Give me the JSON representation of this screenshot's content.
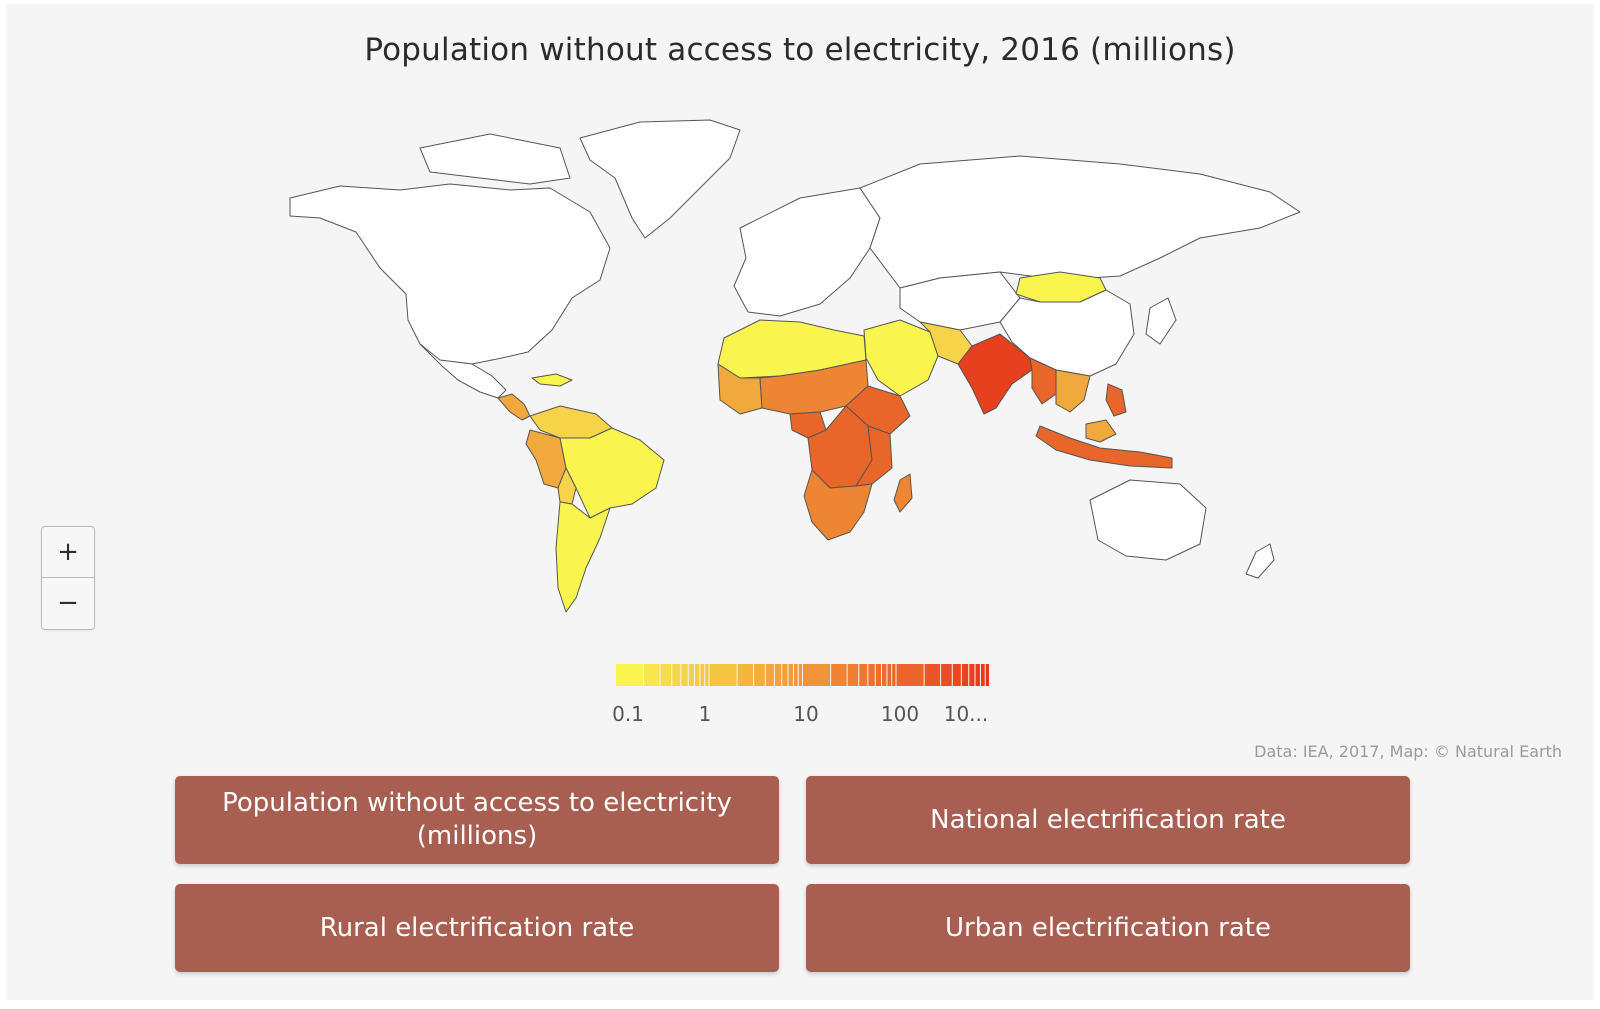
{
  "title": "Population without access to electricity, 2016 (millions)",
  "zoom": {
    "in_label": "+",
    "out_label": "−"
  },
  "legend": {
    "ticks": [
      "0.1",
      "1",
      "10",
      "100",
      "10..."
    ],
    "color_low": "#f9f54e",
    "color_high": "#e8331f",
    "scale": "log"
  },
  "credit": "Data: IEA, 2017, Map: © Natural Earth",
  "buttons": {
    "pop_without_access": "Population without access to electricity (millions)",
    "national_rate": "National electrification rate",
    "rural_rate": "Rural electrification rate",
    "urban_rate": "Urban electrification rate"
  },
  "colors": {
    "background": "#f5f5f5",
    "button": "#a85e50",
    "no_data": "#ffffff",
    "shade_1": "#f9f54e",
    "shade_2": "#f6d348",
    "shade_3": "#f1a83c",
    "shade_4": "#ee8532",
    "shade_5": "#e9662a",
    "shade_6": "#e6401f"
  }
}
